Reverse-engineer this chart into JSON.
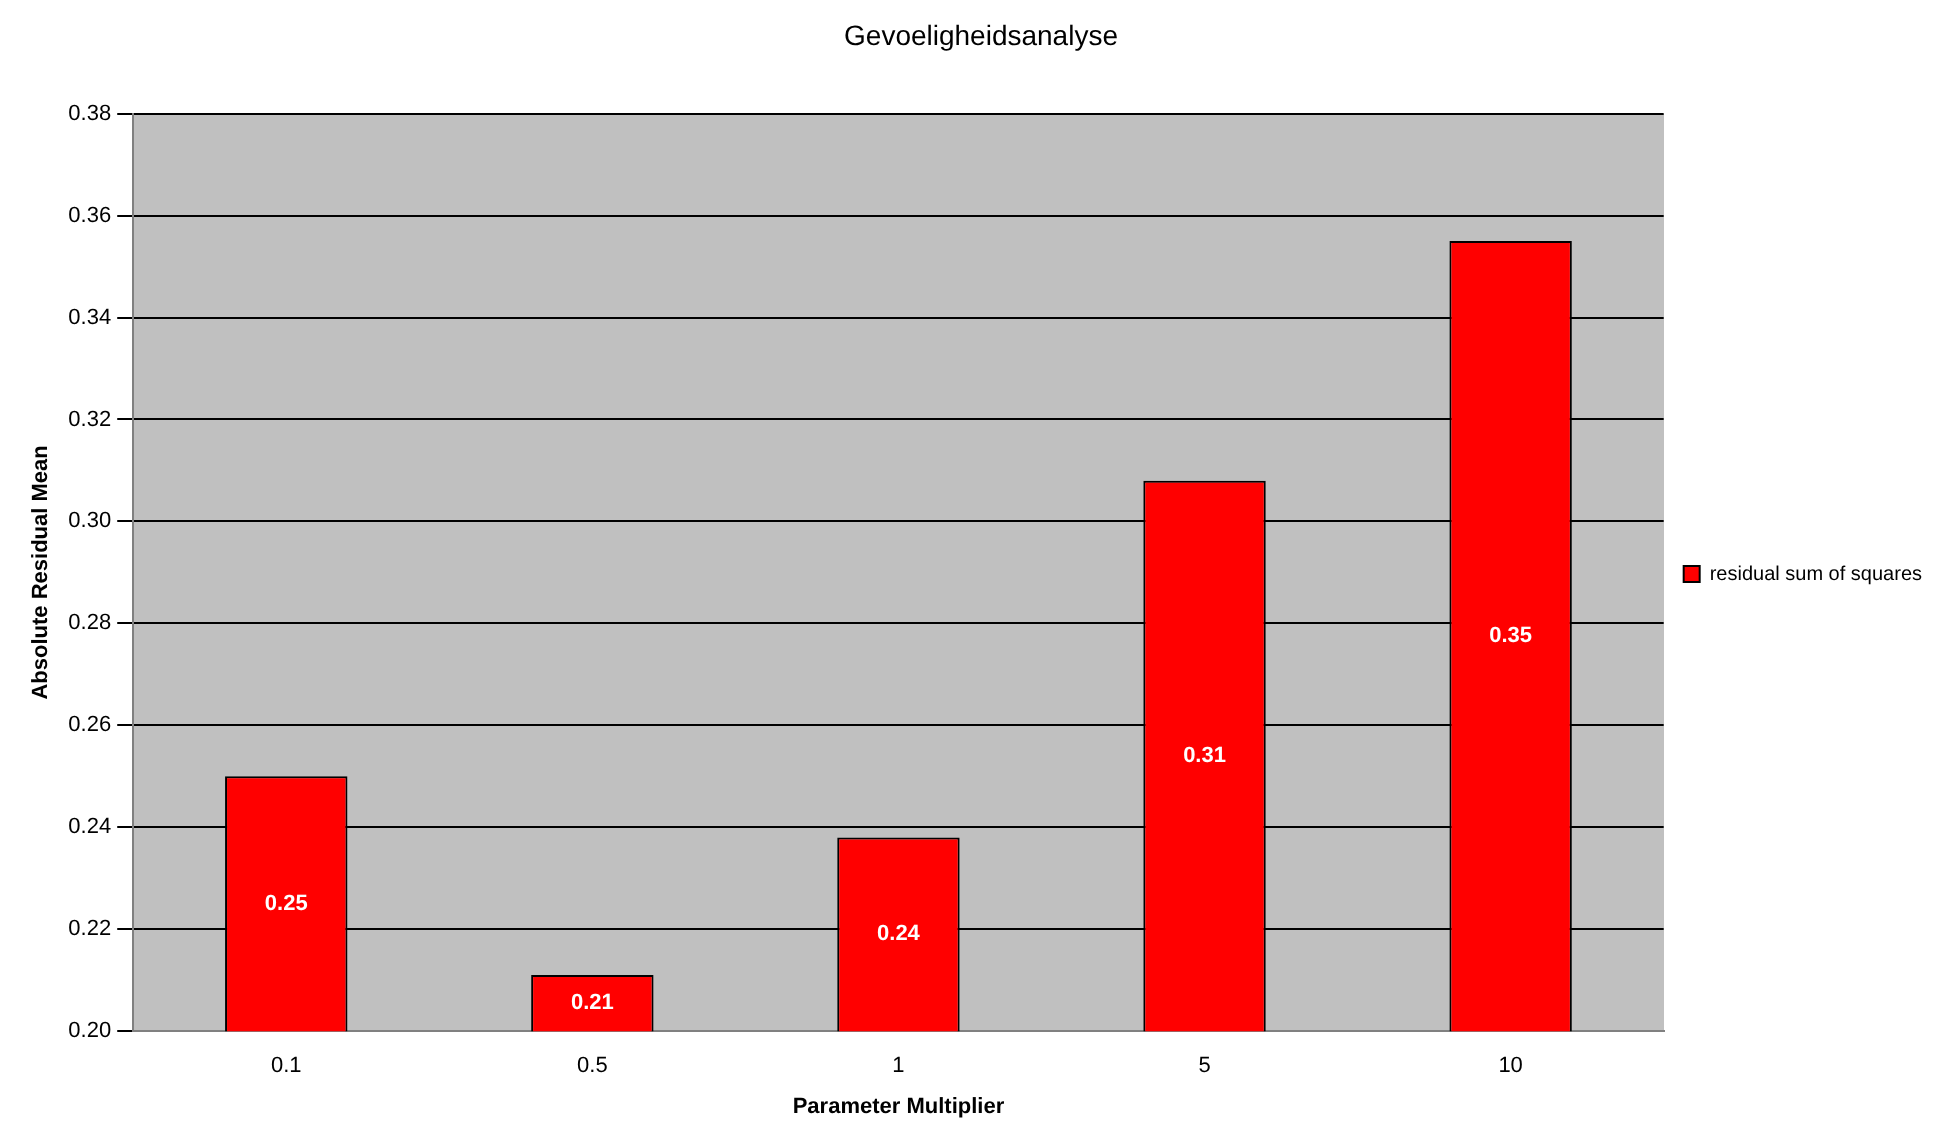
{
  "chart_data": {
    "type": "bar",
    "title": "Gevoeligheidsanalyse",
    "xlabel": "Parameter Multiplier",
    "ylabel": "Absolute Residual Mean",
    "categories": [
      "0.1",
      "0.5",
      "1",
      "5",
      "10"
    ],
    "series": [
      {
        "name": "residual sum of squares",
        "color": "#ff0000",
        "values": [
          0.25,
          0.211,
          0.238,
          0.308,
          0.355
        ],
        "value_labels": [
          "0.25",
          "0.21",
          "0.24",
          "0.31",
          "0.35"
        ]
      }
    ],
    "ylim": [
      0.2,
      0.38
    ],
    "yticks": [
      {
        "value": 0.2,
        "label": "0.20"
      },
      {
        "value": 0.22,
        "label": "0.22"
      },
      {
        "value": 0.24,
        "label": "0.24"
      },
      {
        "value": 0.26,
        "label": "0.26"
      },
      {
        "value": 0.28,
        "label": "0.28"
      },
      {
        "value": 0.3,
        "label": "0.30"
      },
      {
        "value": 0.32,
        "label": "0.32"
      },
      {
        "value": 0.34,
        "label": "0.34"
      },
      {
        "value": 0.36,
        "label": "0.36"
      },
      {
        "value": 0.38,
        "label": "0.38"
      }
    ],
    "grid": "y",
    "legend": "right"
  }
}
